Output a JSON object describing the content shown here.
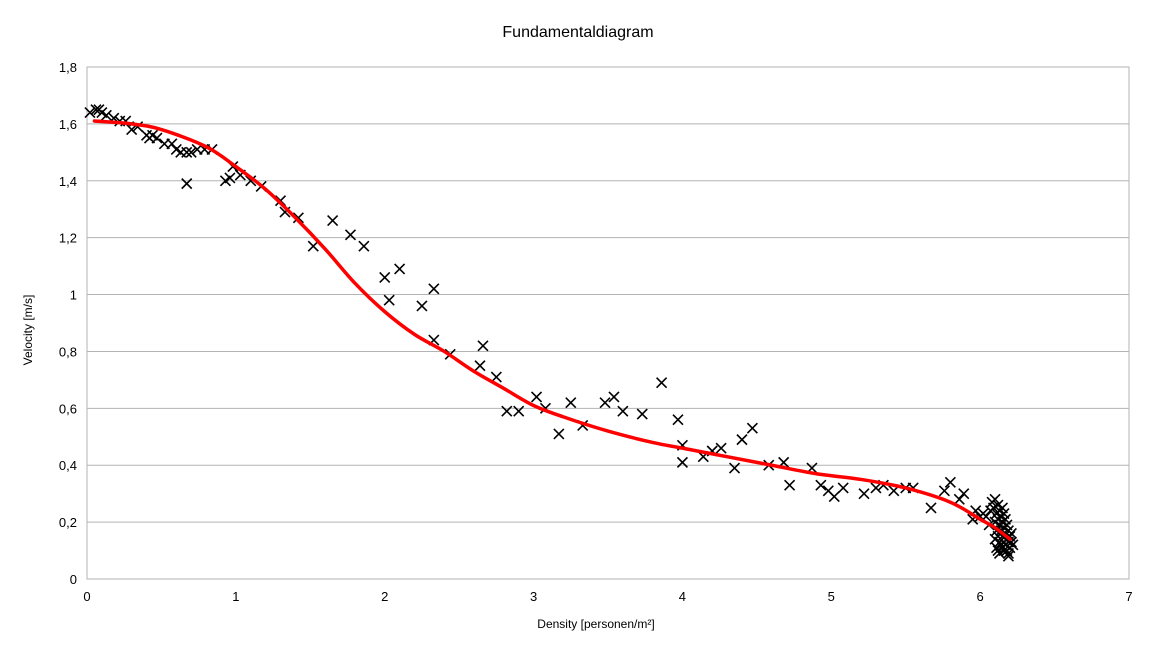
{
  "chart_data": {
    "type": "scatter",
    "title": "Fundamentaldiagram",
    "xlabel": "Density [personen/m²]",
    "ylabel": "Velocity [m/s]",
    "xlim": [
      0,
      7
    ],
    "ylim": [
      0,
      1.8
    ],
    "x_ticks": [
      0,
      1,
      2,
      3,
      4,
      5,
      6,
      7
    ],
    "x_tick_labels": [
      "0",
      "1",
      "2",
      "3",
      "4",
      "5",
      "6",
      "7"
    ],
    "y_ticks": [
      0,
      0.2,
      0.4,
      0.6,
      0.8,
      1.0,
      1.2,
      1.4,
      1.6,
      1.8
    ],
    "y_tick_labels": [
      "0",
      "0,2",
      "0,4",
      "0,6",
      "0,8",
      "1",
      "1,2",
      "1,4",
      "1,6",
      "1,8"
    ],
    "grid": "horizontal",
    "legend": "none",
    "colors": {
      "markers": "#000000",
      "trendline": "#ff0000",
      "grid": "#b3b3b3"
    },
    "series": [
      {
        "marker": "x",
        "points": [
          [
            0.02,
            1.64
          ],
          [
            0.06,
            1.65
          ],
          [
            0.08,
            1.65
          ],
          [
            0.1,
            1.64
          ],
          [
            0.13,
            1.63
          ],
          [
            0.18,
            1.62
          ],
          [
            0.22,
            1.61
          ],
          [
            0.26,
            1.61
          ],
          [
            0.3,
            1.58
          ],
          [
            0.34,
            1.59
          ],
          [
            0.4,
            1.56
          ],
          [
            0.42,
            1.55
          ],
          [
            0.44,
            1.56
          ],
          [
            0.47,
            1.55
          ],
          [
            0.52,
            1.53
          ],
          [
            0.57,
            1.53
          ],
          [
            0.6,
            1.51
          ],
          [
            0.63,
            1.5
          ],
          [
            0.67,
            1.5
          ],
          [
            0.7,
            1.5
          ],
          [
            0.74,
            1.51
          ],
          [
            0.79,
            1.51
          ],
          [
            0.84,
            1.51
          ],
          [
            0.67,
            1.39
          ],
          [
            0.93,
            1.4
          ],
          [
            0.96,
            1.41
          ],
          [
            0.98,
            1.45
          ],
          [
            1.03,
            1.42
          ],
          [
            1.1,
            1.4
          ],
          [
            1.17,
            1.38
          ],
          [
            1.3,
            1.33
          ],
          [
            1.33,
            1.29
          ],
          [
            1.42,
            1.27
          ],
          [
            1.52,
            1.17
          ],
          [
            1.65,
            1.26
          ],
          [
            1.77,
            1.21
          ],
          [
            1.86,
            1.17
          ],
          [
            2.0,
            1.06
          ],
          [
            2.03,
            0.98
          ],
          [
            2.1,
            1.09
          ],
          [
            2.25,
            0.96
          ],
          [
            2.33,
            1.02
          ],
          [
            2.33,
            0.84
          ],
          [
            2.44,
            0.79
          ],
          [
            2.64,
            0.75
          ],
          [
            2.66,
            0.82
          ],
          [
            2.75,
            0.71
          ],
          [
            2.82,
            0.59
          ],
          [
            2.9,
            0.59
          ],
          [
            3.02,
            0.64
          ],
          [
            3.08,
            0.6
          ],
          [
            3.17,
            0.51
          ],
          [
            3.25,
            0.62
          ],
          [
            3.33,
            0.54
          ],
          [
            3.48,
            0.62
          ],
          [
            3.54,
            0.64
          ],
          [
            3.6,
            0.59
          ],
          [
            3.73,
            0.58
          ],
          [
            3.86,
            0.69
          ],
          [
            3.97,
            0.56
          ],
          [
            4.0,
            0.47
          ],
          [
            4.0,
            0.41
          ],
          [
            4.14,
            0.43
          ],
          [
            4.2,
            0.45
          ],
          [
            4.26,
            0.46
          ],
          [
            4.35,
            0.39
          ],
          [
            4.4,
            0.49
          ],
          [
            4.47,
            0.53
          ],
          [
            4.58,
            0.4
          ],
          [
            4.68,
            0.41
          ],
          [
            4.72,
            0.33
          ],
          [
            4.87,
            0.39
          ],
          [
            4.93,
            0.33
          ],
          [
            4.98,
            0.31
          ],
          [
            5.02,
            0.29
          ],
          [
            5.08,
            0.32
          ],
          [
            5.22,
            0.3
          ],
          [
            5.3,
            0.32
          ],
          [
            5.35,
            0.33
          ],
          [
            5.42,
            0.31
          ],
          [
            5.5,
            0.32
          ],
          [
            5.55,
            0.32
          ],
          [
            5.67,
            0.25
          ],
          [
            5.76,
            0.31
          ],
          [
            5.8,
            0.34
          ],
          [
            5.86,
            0.28
          ],
          [
            5.89,
            0.3
          ],
          [
            5.95,
            0.21
          ],
          [
            5.97,
            0.24
          ],
          [
            6.0,
            0.22
          ],
          [
            6.02,
            0.23
          ],
          [
            6.04,
            0.22
          ],
          [
            6.06,
            0.19
          ],
          [
            6.07,
            0.24
          ],
          [
            6.08,
            0.27
          ],
          [
            6.09,
            0.25
          ],
          [
            6.1,
            0.28
          ],
          [
            6.1,
            0.2
          ],
          [
            6.1,
            0.14
          ],
          [
            6.11,
            0.23
          ],
          [
            6.11,
            0.17
          ],
          [
            6.11,
            0.11
          ],
          [
            6.12,
            0.26
          ],
          [
            6.12,
            0.21
          ],
          [
            6.12,
            0.15
          ],
          [
            6.12,
            0.1
          ],
          [
            6.13,
            0.24
          ],
          [
            6.13,
            0.19
          ],
          [
            6.13,
            0.13
          ],
          [
            6.13,
            0.09
          ],
          [
            6.14,
            0.22
          ],
          [
            6.14,
            0.17
          ],
          [
            6.14,
            0.12
          ],
          [
            6.15,
            0.25
          ],
          [
            6.15,
            0.2
          ],
          [
            6.15,
            0.15
          ],
          [
            6.15,
            0.11
          ],
          [
            6.16,
            0.23
          ],
          [
            6.16,
            0.18
          ],
          [
            6.16,
            0.13
          ],
          [
            6.16,
            0.1
          ],
          [
            6.17,
            0.21
          ],
          [
            6.17,
            0.16
          ],
          [
            6.17,
            0.12
          ],
          [
            6.18,
            0.19
          ],
          [
            6.18,
            0.14
          ],
          [
            6.18,
            0.1
          ],
          [
            6.19,
            0.17
          ],
          [
            6.19,
            0.13
          ],
          [
            6.19,
            0.09
          ],
          [
            6.2,
            0.15
          ],
          [
            6.2,
            0.11
          ],
          [
            6.21,
            0.13
          ],
          [
            6.21,
            0.16
          ],
          [
            6.22,
            0.12
          ],
          [
            6.19,
            0.08
          ]
        ]
      },
      {
        "type": "line",
        "style": "smooth trendline",
        "points": [
          [
            0.05,
            1.61
          ],
          [
            0.3,
            1.6
          ],
          [
            0.5,
            1.58
          ],
          [
            0.8,
            1.52
          ],
          [
            1.0,
            1.45
          ],
          [
            1.2,
            1.37
          ],
          [
            1.4,
            1.27
          ],
          [
            1.6,
            1.16
          ],
          [
            1.8,
            1.04
          ],
          [
            2.0,
            0.94
          ],
          [
            2.2,
            0.86
          ],
          [
            2.4,
            0.8
          ],
          [
            2.6,
            0.73
          ],
          [
            2.8,
            0.67
          ],
          [
            3.0,
            0.61
          ],
          [
            3.2,
            0.57
          ],
          [
            3.5,
            0.52
          ],
          [
            3.8,
            0.48
          ],
          [
            4.0,
            0.46
          ],
          [
            4.3,
            0.43
          ],
          [
            4.6,
            0.4
          ],
          [
            4.9,
            0.37
          ],
          [
            5.2,
            0.35
          ],
          [
            5.5,
            0.32
          ],
          [
            5.8,
            0.27
          ],
          [
            6.0,
            0.21
          ],
          [
            6.1,
            0.18
          ],
          [
            6.2,
            0.14
          ]
        ]
      }
    ]
  }
}
